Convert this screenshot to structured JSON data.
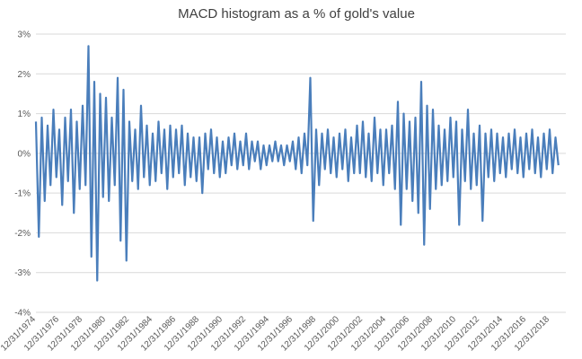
{
  "chart_data": {
    "type": "line",
    "title": "MACD histogram as a % of gold's value",
    "categories": [
      "12/31/1974",
      null,
      null,
      null,
      null,
      null,
      null,
      null,
      "12/31/1976",
      null,
      null,
      null,
      null,
      null,
      null,
      null,
      "12/31/1978",
      null,
      null,
      null,
      null,
      null,
      null,
      null,
      "12/31/1980",
      null,
      null,
      null,
      null,
      null,
      null,
      null,
      "12/31/1982",
      null,
      null,
      null,
      null,
      null,
      null,
      null,
      "12/31/1984",
      null,
      null,
      null,
      null,
      null,
      null,
      null,
      "12/31/1986",
      null,
      null,
      null,
      null,
      null,
      null,
      null,
      "12/31/1988",
      null,
      null,
      null,
      null,
      null,
      null,
      null,
      "12/31/1990",
      null,
      null,
      null,
      null,
      null,
      null,
      null,
      "12/31/1992",
      null,
      null,
      null,
      null,
      null,
      null,
      null,
      "12/31/1994",
      null,
      null,
      null,
      null,
      null,
      null,
      null,
      "12/31/1996",
      null,
      null,
      null,
      null,
      null,
      null,
      null,
      "12/31/1998",
      null,
      null,
      null,
      null,
      null,
      null,
      null,
      "12/31/2000",
      null,
      null,
      null,
      null,
      null,
      null,
      null,
      "12/31/2002",
      null,
      null,
      null,
      null,
      null,
      null,
      null,
      "12/31/2004",
      null,
      null,
      null,
      null,
      null,
      null,
      null,
      "12/31/2006",
      null,
      null,
      null,
      null,
      null,
      null,
      null,
      "12/31/2008",
      null,
      null,
      null,
      null,
      null,
      null,
      null,
      "12/31/2010",
      null,
      null,
      null,
      null,
      null,
      null,
      null,
      "12/31/2012",
      null,
      null,
      null,
      null,
      null,
      null,
      null,
      "12/31/2014",
      null,
      null,
      null,
      null,
      null,
      null,
      null,
      "12/31/2016",
      null,
      null,
      null,
      null,
      null,
      null,
      null,
      "12/31/2018",
      null,
      null,
      null
    ],
    "series": [
      {
        "name": "MACD histogram",
        "color": "#4a7ebb",
        "values": [
          0.8,
          -2.1,
          0.9,
          -1.2,
          0.7,
          -0.8,
          1.1,
          -0.6,
          0.6,
          -1.3,
          0.9,
          -0.7,
          1.1,
          -1.5,
          0.8,
          -0.9,
          1.2,
          -0.8,
          2.7,
          -2.6,
          1.8,
          -3.2,
          1.5,
          -1.1,
          1.4,
          -1.2,
          0.9,
          -0.8,
          1.9,
          -2.2,
          1.6,
          -2.7,
          0.8,
          -0.7,
          0.6,
          -0.9,
          1.2,
          -0.6,
          0.7,
          -0.8,
          0.5,
          -0.7,
          0.8,
          -0.5,
          0.6,
          -0.9,
          0.7,
          -0.6,
          0.6,
          -0.5,
          0.7,
          -0.8,
          0.5,
          -0.6,
          0.4,
          -0.7,
          0.4,
          -1.0,
          0.5,
          -0.4,
          0.6,
          -0.5,
          0.4,
          -0.6,
          0.3,
          -0.5,
          0.4,
          -0.3,
          0.5,
          -0.4,
          0.3,
          -0.3,
          0.5,
          -0.4,
          0.3,
          -0.2,
          0.3,
          -0.4,
          0.2,
          -0.3,
          0.2,
          -0.2,
          0.3,
          -0.2,
          0.2,
          -0.3,
          0.2,
          -0.2,
          0.3,
          -0.4,
          0.4,
          -0.5,
          0.5,
          -0.3,
          1.9,
          -1.7,
          0.6,
          -0.8,
          0.5,
          -0.4,
          0.6,
          -0.5,
          0.4,
          -0.6,
          0.5,
          -0.4,
          0.6,
          -0.7,
          0.4,
          -0.5,
          0.7,
          -0.5,
          0.8,
          -0.6,
          0.5,
          -0.7,
          0.9,
          -0.5,
          0.6,
          -0.8,
          0.6,
          -0.5,
          0.7,
          -0.9,
          1.3,
          -1.8,
          1.0,
          -0.9,
          0.8,
          -1.2,
          0.9,
          -1.5,
          1.8,
          -2.3,
          1.2,
          -1.4,
          1.1,
          -0.9,
          0.7,
          -0.8,
          0.6,
          -0.7,
          0.9,
          -0.6,
          0.8,
          -1.8,
          0.6,
          -0.7,
          1.1,
          -0.9,
          0.5,
          -0.8,
          0.7,
          -1.7,
          0.5,
          -0.6,
          0.6,
          -0.7,
          0.5,
          -0.5,
          0.4,
          -0.6,
          0.5,
          -0.4,
          0.6,
          -0.5,
          0.4,
          -0.6,
          0.5,
          -0.4,
          0.6,
          -0.5,
          0.4,
          -0.6,
          0.5,
          -0.4,
          0.6,
          -0.5,
          0.4,
          -0.3
        ]
      }
    ],
    "ylim": [
      -4,
      3
    ],
    "yticks": [
      {
        "value": -4,
        "label": "-4%"
      },
      {
        "value": -3,
        "label": "-3%"
      },
      {
        "value": -2,
        "label": "-2%"
      },
      {
        "value": -1,
        "label": "-1%"
      },
      {
        "value": 0,
        "label": "0%"
      },
      {
        "value": 1,
        "label": "1%"
      },
      {
        "value": 2,
        "label": "2%"
      },
      {
        "value": 3,
        "label": "3%"
      }
    ],
    "grid": true
  }
}
